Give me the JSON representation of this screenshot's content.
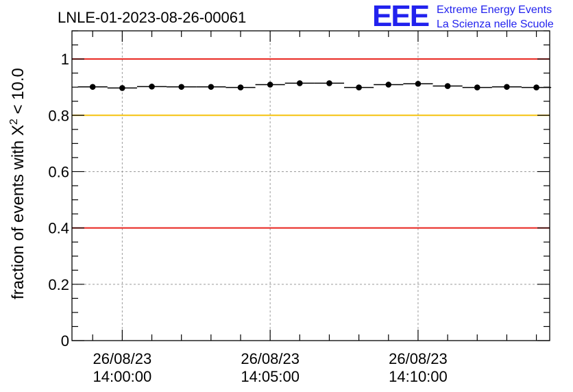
{
  "header": {
    "run_title": "LNLE-01-2023-08-26-00061",
    "logo_text": "EEE",
    "logo_line1": "Extreme Energy Events",
    "logo_line2": "La Scienza nelle Scuole"
  },
  "chart_data": {
    "type": "scatter",
    "title": "LNLE-01-2023-08-26-00061",
    "ylabel_prefix": "fraction of events with X",
    "ylabel_sup": "2",
    "ylabel_suffix": " < 10.0",
    "xlabel": "",
    "ylim": [
      0,
      1.1
    ],
    "xlim_minutes": [
      -1.7,
      14.45
    ],
    "yticks": [
      0,
      0.2,
      0.4,
      0.6,
      0.8,
      1
    ],
    "ytick_labels": [
      "0",
      "0.2",
      "0.4",
      "0.6",
      "0.8",
      "1"
    ],
    "xticks_minutes": [
      0,
      5,
      10
    ],
    "xtick_labels": [
      {
        "date": "26/08/23",
        "time": "14:00:00"
      },
      {
        "date": "26/08/23",
        "time": "14:05:00"
      },
      {
        "date": "26/08/23",
        "time": "14:10:00"
      }
    ],
    "grid": true,
    "reference_lines": [
      {
        "y": 1.0,
        "color": "#e8221b"
      },
      {
        "y": 0.8,
        "color": "#f5c20b"
      },
      {
        "y": 0.4,
        "color": "#e8221b"
      }
    ],
    "bin_width_minutes": 1,
    "x": [
      "13:59:00",
      "14:00:00",
      "14:01:00",
      "14:02:00",
      "14:03:00",
      "14:04:00",
      "14:05:00",
      "14:06:00",
      "14:07:00",
      "14:08:00",
      "14:09:00",
      "14:10:00",
      "14:11:00",
      "14:12:00",
      "14:13:00",
      "14:14:00"
    ],
    "x_minutes": [
      -1,
      0,
      1,
      2,
      3,
      4,
      5,
      6,
      7,
      8,
      9,
      10,
      11,
      12,
      13,
      14
    ],
    "values": [
      0.901,
      0.897,
      0.902,
      0.901,
      0.901,
      0.899,
      0.909,
      0.914,
      0.914,
      0.899,
      0.909,
      0.912,
      0.904,
      0.899,
      0.901,
      0.899
    ]
  }
}
